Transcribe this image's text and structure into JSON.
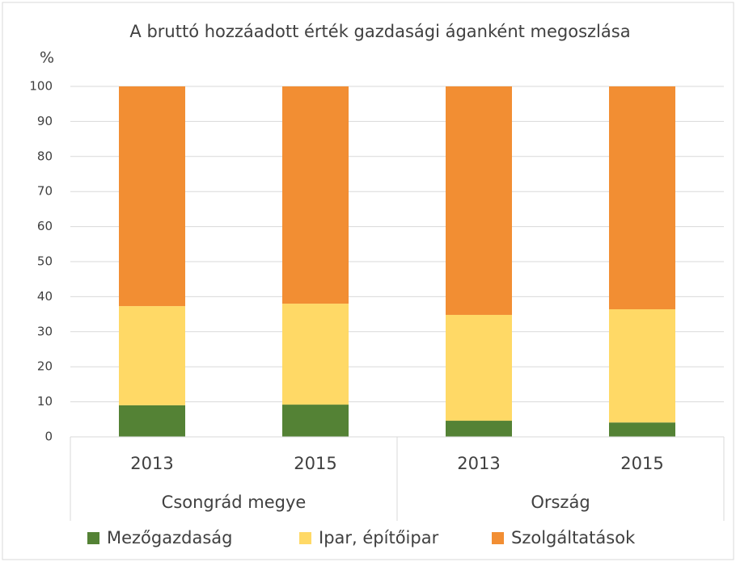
{
  "chart_data": {
    "type": "stacked_bar",
    "title": "A bruttó hozzáadott érték gazdasági áganként megoszlása",
    "y_label": "%",
    "categories": [
      "2013",
      "2015",
      "2013",
      "2015"
    ],
    "groups": [
      "Csongrád megye",
      "Ország"
    ],
    "series": [
      {
        "name": "Mezőgazdaság",
        "color": "#548235",
        "values": [
          9.0,
          9.2,
          4.6,
          4.1
        ]
      },
      {
        "name": "Ipar, építőipar",
        "color": "#ffd966",
        "values": [
          28.3,
          28.8,
          30.2,
          32.3
        ]
      },
      {
        "name": "Szolgáltatások",
        "color": "#f28e33",
        "values": [
          62.7,
          62.0,
          65.2,
          63.6
        ]
      }
    ],
    "ylim": [
      0,
      100
    ],
    "yticks": [
      0,
      10,
      20,
      30,
      40,
      50,
      60,
      70,
      80,
      90,
      100
    ],
    "grid": true,
    "legend": "bottom"
  }
}
